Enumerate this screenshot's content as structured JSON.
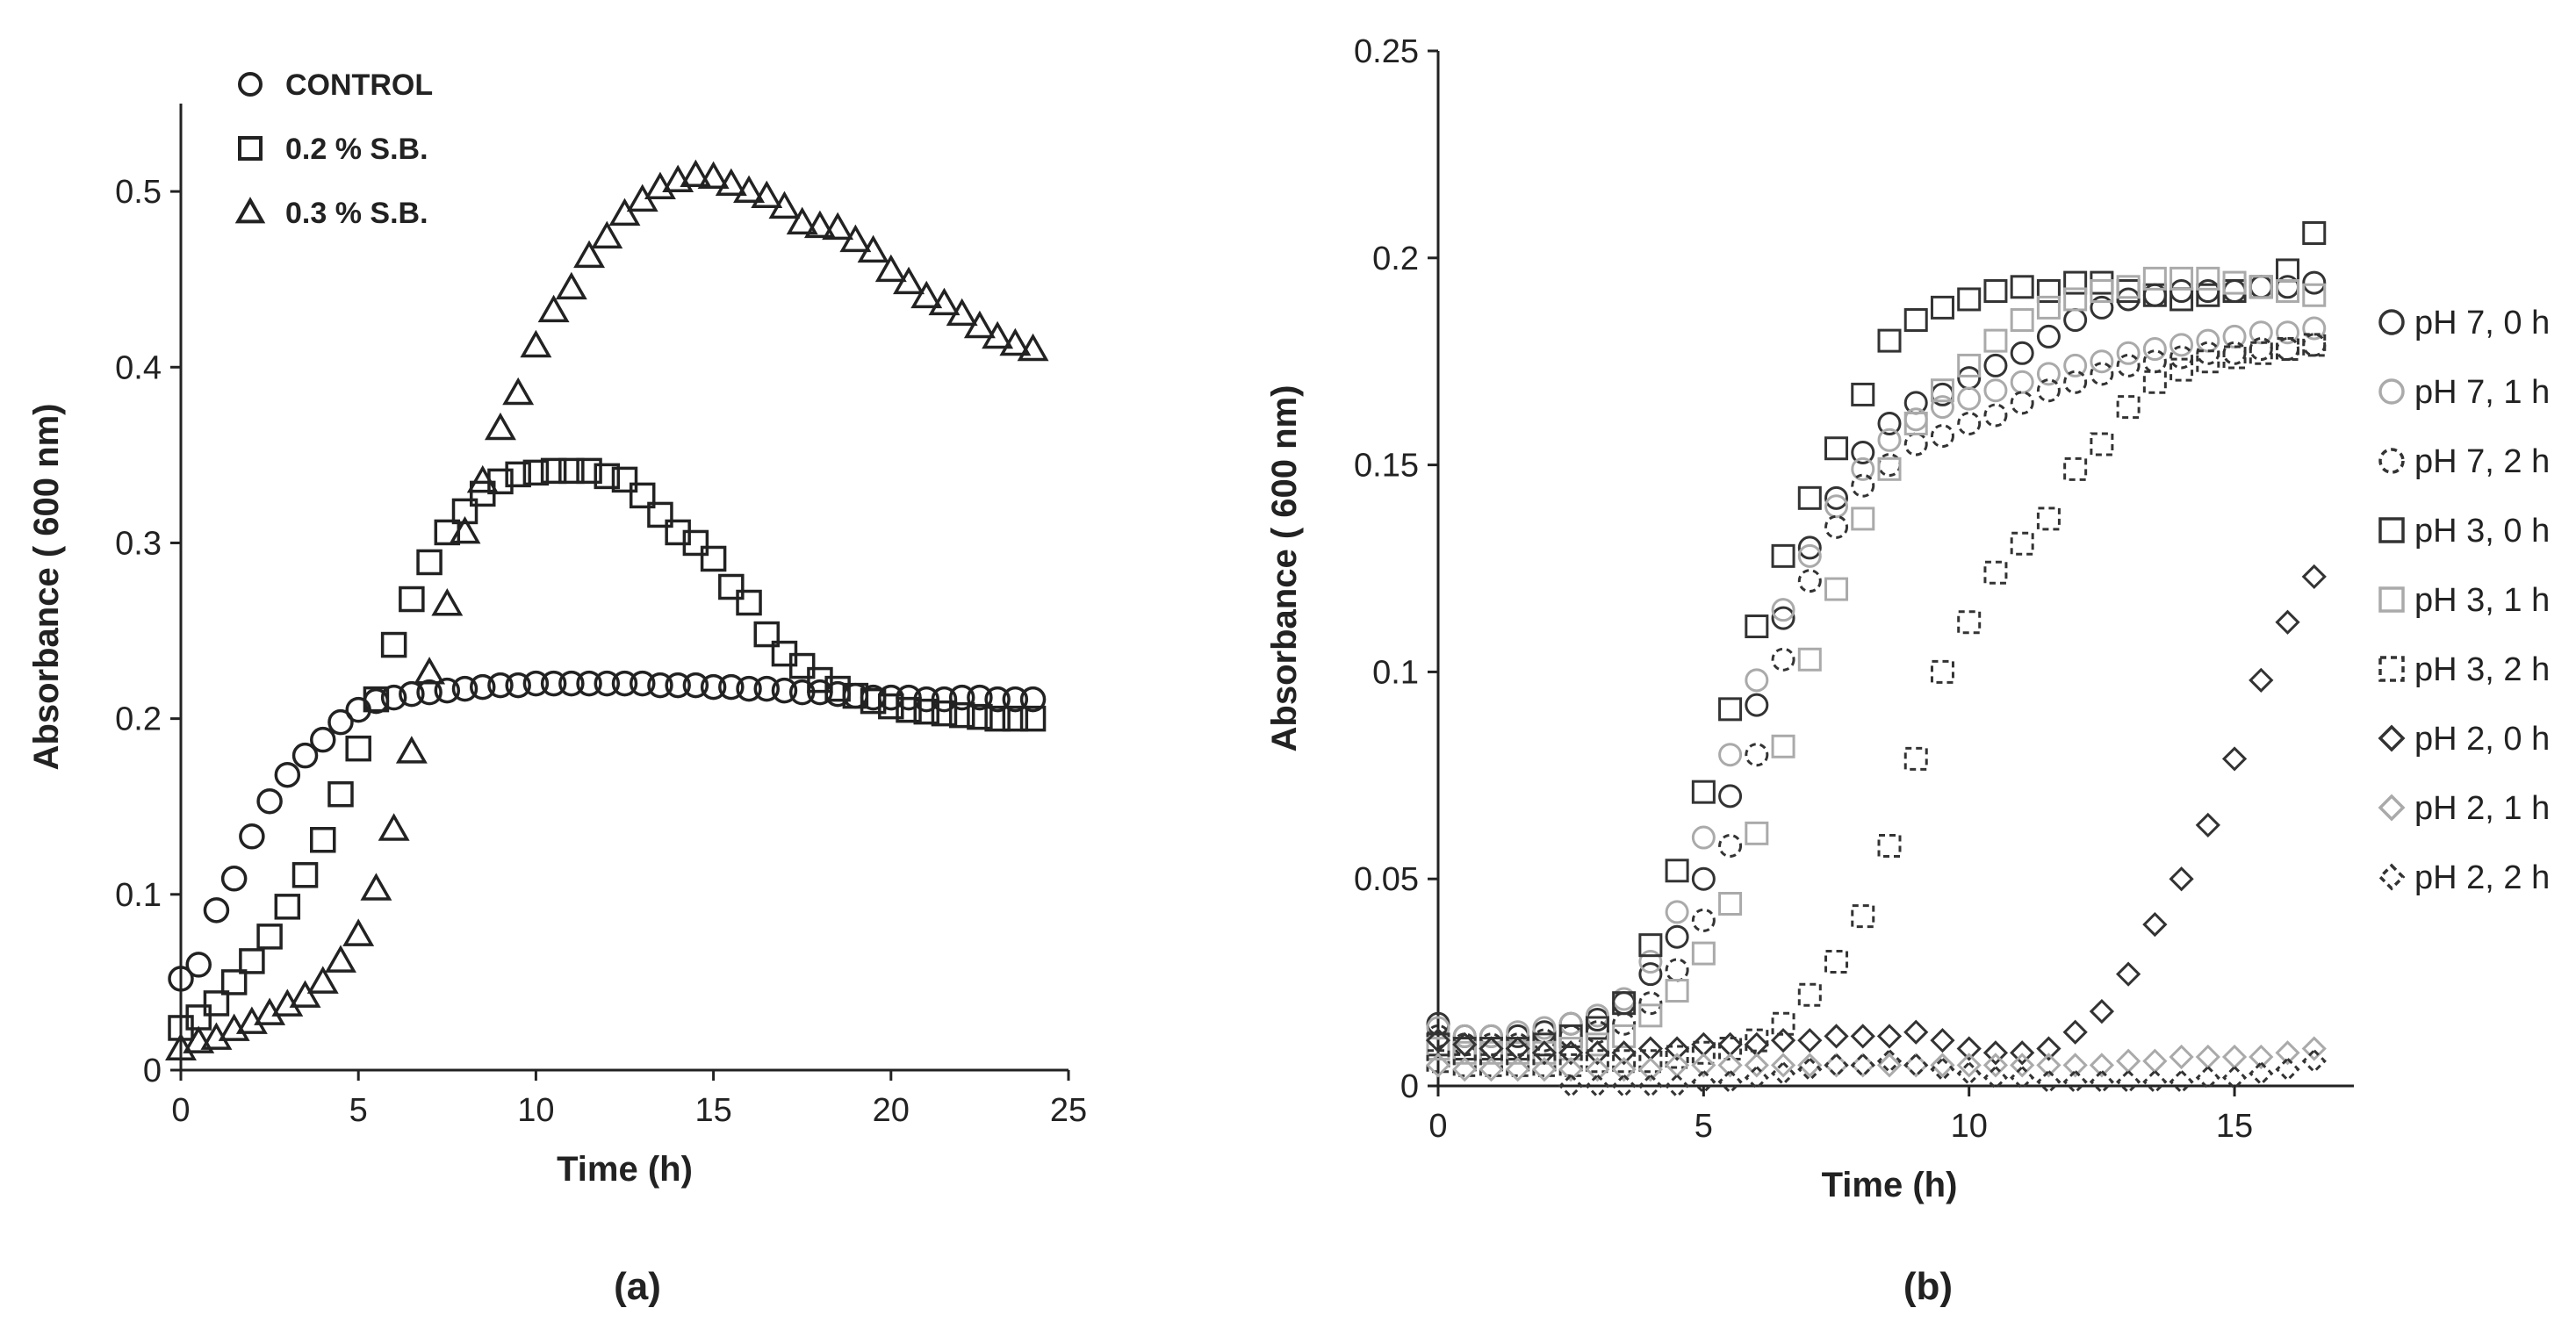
{
  "chart_data": [
    {
      "type": "scatter",
      "panel_label": "(a)",
      "xlabel": "Time (h)",
      "ylabel": "Absorbance ( 600 nm)",
      "xlim": [
        0,
        25
      ],
      "ylim": [
        0,
        0.55
      ],
      "xticks": [
        0,
        5,
        10,
        15,
        20,
        25
      ],
      "yticks": [
        0,
        0.1,
        0.2,
        0.3,
        0.4,
        0.5
      ],
      "xtick_labels": [
        "0",
        "5",
        "10",
        "15",
        "20",
        "25"
      ],
      "ytick_labels": [
        "0",
        "0.1",
        "0.2",
        "0.3",
        "0.4",
        "0.5"
      ],
      "legend_position": "top-left",
      "series": [
        {
          "name": "CONTROL",
          "marker": "circle",
          "color": "#222222",
          "x": [
            0,
            0.5,
            1,
            1.5,
            2,
            2.5,
            3,
            3.5,
            4,
            4.5,
            5,
            5.5,
            6,
            6.5,
            7,
            7.5,
            8,
            8.5,
            9,
            9.5,
            10,
            10.5,
            11,
            11.5,
            12,
            12.5,
            13,
            13.5,
            14,
            14.5,
            15,
            15.5,
            16,
            16.5,
            17,
            17.5,
            18,
            18.5,
            19,
            19.5,
            20,
            20.5,
            21,
            21.5,
            22,
            22.5,
            23,
            23.5,
            24
          ],
          "y": [
            0.052,
            0.06,
            0.091,
            0.109,
            0.133,
            0.153,
            0.168,
            0.179,
            0.188,
            0.198,
            0.205,
            0.21,
            0.212,
            0.214,
            0.215,
            0.216,
            0.217,
            0.218,
            0.219,
            0.219,
            0.22,
            0.22,
            0.22,
            0.22,
            0.22,
            0.22,
            0.22,
            0.219,
            0.219,
            0.219,
            0.218,
            0.218,
            0.217,
            0.217,
            0.216,
            0.215,
            0.215,
            0.214,
            0.213,
            0.212,
            0.212,
            0.212,
            0.211,
            0.211,
            0.212,
            0.212,
            0.211,
            0.211,
            0.211
          ]
        },
        {
          "name": "0.2 %  S.B.",
          "marker": "square",
          "color": "#222222",
          "x": [
            0,
            0.5,
            1,
            1.5,
            2,
            2.5,
            3,
            3.5,
            4,
            4.5,
            5,
            5.5,
            6,
            6.5,
            7,
            7.5,
            8,
            8.5,
            9,
            9.5,
            10,
            10.5,
            11,
            11.5,
            12,
            12.5,
            13,
            13.5,
            14,
            14.5,
            15,
            15.5,
            16,
            16.5,
            17,
            17.5,
            18,
            18.5,
            19,
            19.5,
            20,
            20.5,
            21,
            21.5,
            22,
            22.5,
            23,
            23.5,
            24
          ],
          "y": [
            0.024,
            0.03,
            0.038,
            0.05,
            0.062,
            0.076,
            0.093,
            0.111,
            0.131,
            0.157,
            0.183,
            0.211,
            0.242,
            0.268,
            0.289,
            0.306,
            0.318,
            0.328,
            0.335,
            0.339,
            0.34,
            0.341,
            0.341,
            0.341,
            0.338,
            0.336,
            0.327,
            0.316,
            0.306,
            0.3,
            0.291,
            0.275,
            0.266,
            0.248,
            0.237,
            0.23,
            0.222,
            0.217,
            0.213,
            0.21,
            0.207,
            0.205,
            0.204,
            0.203,
            0.202,
            0.201,
            0.2,
            0.2,
            0.2
          ]
        },
        {
          "name": "0.3 %  S.B.",
          "marker": "triangle",
          "color": "#222222",
          "x": [
            0,
            0.5,
            1,
            1.5,
            2,
            2.5,
            3,
            3.5,
            4,
            4.5,
            5,
            5.5,
            6,
            6.5,
            7,
            7.5,
            8,
            8.5,
            9,
            9.5,
            10,
            10.5,
            11,
            11.5,
            12,
            12.5,
            13,
            13.5,
            14,
            14.5,
            15,
            15.5,
            16,
            16.5,
            17,
            17.5,
            18,
            18.5,
            19,
            19.5,
            20,
            20.5,
            21,
            21.5,
            22,
            22.5,
            23,
            23.5,
            24
          ],
          "y": [
            0.012,
            0.016,
            0.018,
            0.023,
            0.027,
            0.032,
            0.037,
            0.042,
            0.05,
            0.062,
            0.077,
            0.103,
            0.137,
            0.181,
            0.226,
            0.265,
            0.306,
            0.335,
            0.365,
            0.385,
            0.412,
            0.432,
            0.445,
            0.463,
            0.474,
            0.487,
            0.495,
            0.502,
            0.506,
            0.509,
            0.508,
            0.504,
            0.5,
            0.497,
            0.491,
            0.482,
            0.48,
            0.479,
            0.472,
            0.466,
            0.455,
            0.448,
            0.44,
            0.436,
            0.43,
            0.423,
            0.417,
            0.413,
            0.41
          ]
        }
      ]
    },
    {
      "type": "scatter",
      "panel_label": "(b)",
      "xlabel": "Time (h)",
      "ylabel": "Absorbance ( 600 nm)",
      "xlim": [
        0,
        17
      ],
      "ylim": [
        0,
        0.25
      ],
      "xticks": [
        0,
        5,
        10,
        15
      ],
      "yticks": [
        0,
        0.05,
        0.1,
        0.15,
        0.2,
        0.25
      ],
      "xtick_labels": [
        "0",
        "5",
        "10",
        "15"
      ],
      "ytick_labels": [
        "0",
        "0.05",
        "0.1",
        "0.15",
        "0.2",
        "0.25"
      ],
      "legend_position": "right",
      "series": [
        {
          "name": "pH 7, 0 h",
          "marker": "circle",
          "style": "solid",
          "color": "#333333",
          "x": [
            0,
            0.5,
            1,
            1.5,
            2,
            2.5,
            3,
            3.5,
            4,
            4.5,
            5,
            5.5,
            6,
            6.5,
            7,
            7.5,
            8,
            8.5,
            9,
            9.5,
            10,
            10.5,
            11,
            11.5,
            12,
            12.5,
            13,
            13.5,
            14,
            14.5,
            15,
            15.5,
            16,
            16.5
          ],
          "y": [
            0.015,
            0.012,
            0.012,
            0.012,
            0.013,
            0.015,
            0.016,
            0.02,
            0.027,
            0.036,
            0.05,
            0.07,
            0.092,
            0.113,
            0.13,
            0.142,
            0.153,
            0.16,
            0.165,
            0.167,
            0.171,
            0.174,
            0.177,
            0.181,
            0.185,
            0.188,
            0.19,
            0.191,
            0.192,
            0.192,
            0.192,
            0.193,
            0.193,
            0.194
          ]
        },
        {
          "name": "pH 7, 1 h",
          "marker": "circle",
          "style": "light",
          "color": "#aaaaaa",
          "x": [
            0,
            0.5,
            1,
            1.5,
            2,
            2.5,
            3,
            3.5,
            4,
            4.5,
            5,
            5.5,
            6,
            6.5,
            7,
            7.5,
            8,
            8.5,
            9,
            9.5,
            10,
            10.5,
            11,
            11.5,
            12,
            12.5,
            13,
            13.5,
            14,
            14.5,
            15,
            15.5,
            16,
            16.5
          ],
          "y": [
            0.014,
            0.012,
            0.012,
            0.013,
            0.014,
            0.015,
            0.017,
            0.021,
            0.03,
            0.042,
            0.06,
            0.08,
            0.098,
            0.115,
            0.128,
            0.14,
            0.149,
            0.156,
            0.161,
            0.164,
            0.166,
            0.168,
            0.17,
            0.172,
            0.174,
            0.175,
            0.177,
            0.178,
            0.179,
            0.18,
            0.181,
            0.182,
            0.182,
            0.183
          ]
        },
        {
          "name": "pH 7, 2 h",
          "marker": "circle",
          "style": "dashed",
          "color": "#333333",
          "x": [
            0,
            0.5,
            1,
            1.5,
            2,
            2.5,
            3,
            3.5,
            4,
            4.5,
            5,
            5.5,
            6,
            6.5,
            7,
            7.5,
            8,
            8.5,
            9,
            9.5,
            10,
            10.5,
            11,
            11.5,
            12,
            12.5,
            13,
            13.5,
            14,
            14.5,
            15,
            15.5,
            16,
            16.5
          ],
          "y": [
            0.012,
            0.01,
            0.01,
            0.01,
            0.011,
            0.012,
            0.013,
            0.015,
            0.02,
            0.028,
            0.04,
            0.058,
            0.08,
            0.103,
            0.122,
            0.135,
            0.145,
            0.15,
            0.155,
            0.157,
            0.16,
            0.162,
            0.165,
            0.168,
            0.17,
            0.172,
            0.174,
            0.175,
            0.176,
            0.177,
            0.177,
            0.178,
            0.178,
            0.179
          ]
        },
        {
          "name": "pH 3, 0 h",
          "marker": "square",
          "style": "solid",
          "color": "#333333",
          "x": [
            0,
            0.5,
            1,
            1.5,
            2,
            2.5,
            3,
            3.5,
            4,
            4.5,
            5,
            5.5,
            6,
            6.5,
            7,
            7.5,
            8,
            8.5,
            9,
            9.5,
            10,
            10.5,
            11,
            11.5,
            12,
            12.5,
            13,
            13.5,
            14,
            14.5,
            15,
            15.5,
            16,
            16.5
          ],
          "y": [
            0.01,
            0.009,
            0.009,
            0.009,
            0.01,
            0.012,
            0.014,
            0.02,
            0.034,
            0.052,
            0.071,
            0.091,
            0.111,
            0.128,
            0.142,
            0.154,
            0.167,
            0.18,
            0.185,
            0.188,
            0.19,
            0.192,
            0.193,
            0.192,
            0.194,
            0.194,
            0.192,
            0.191,
            0.19,
            0.191,
            0.192,
            0.193,
            0.197,
            0.206
          ]
        },
        {
          "name": "pH 3, 1 h",
          "marker": "square",
          "style": "light",
          "color": "#aaaaaa",
          "x": [
            0,
            0.5,
            1,
            1.5,
            2,
            2.5,
            3,
            3.5,
            4,
            4.5,
            5,
            5.5,
            6,
            6.5,
            7,
            7.5,
            8,
            8.5,
            9,
            9.5,
            10,
            10.5,
            11,
            11.5,
            12,
            12.5,
            13,
            13.5,
            14,
            14.5,
            15,
            15.5,
            16,
            16.5
          ],
          "y": [
            0.009,
            0.008,
            0.008,
            0.008,
            0.008,
            0.009,
            0.01,
            0.012,
            0.017,
            0.023,
            0.032,
            0.044,
            0.061,
            0.082,
            0.103,
            0.12,
            0.137,
            0.149,
            0.16,
            0.168,
            0.174,
            0.18,
            0.185,
            0.188,
            0.19,
            0.192,
            0.193,
            0.195,
            0.195,
            0.195,
            0.194,
            0.193,
            0.192,
            0.191
          ]
        },
        {
          "name": "pH 3, 2 h",
          "marker": "square",
          "style": "dashed",
          "color": "#333333",
          "x": [
            0,
            0.5,
            1,
            1.5,
            2,
            2.5,
            3,
            3.5,
            4,
            4.5,
            5,
            5.5,
            6,
            6.5,
            7,
            7.5,
            8,
            8.5,
            9,
            9.5,
            10,
            10.5,
            11,
            11.5,
            12,
            12.5,
            13,
            13.5,
            14,
            14.5,
            15,
            15.5,
            16,
            16.5
          ],
          "y": [
            0.006,
            0.005,
            0.005,
            0.005,
            0.005,
            0.005,
            0.006,
            0.006,
            0.006,
            0.007,
            0.008,
            0.009,
            0.011,
            0.015,
            0.022,
            0.03,
            0.041,
            0.058,
            0.079,
            0.1,
            0.112,
            0.124,
            0.131,
            0.137,
            0.149,
            0.155,
            0.164,
            0.17,
            0.173,
            0.175,
            0.176,
            0.177,
            0.178,
            0.179
          ]
        },
        {
          "name": "pH 2, 0 h",
          "marker": "diamond",
          "style": "solid",
          "color": "#333333",
          "x": [
            0,
            0.5,
            1,
            1.5,
            2,
            2.5,
            3,
            3.5,
            4,
            4.5,
            5,
            5.5,
            6,
            6.5,
            7,
            7.5,
            8,
            8.5,
            9,
            9.5,
            10,
            10.5,
            11,
            11.5,
            12,
            12.5,
            13,
            13.5,
            14,
            14.5,
            15,
            15.5,
            16,
            16.5
          ],
          "y": [
            0.011,
            0.01,
            0.009,
            0.009,
            0.008,
            0.008,
            0.008,
            0.008,
            0.009,
            0.009,
            0.01,
            0.01,
            0.01,
            0.011,
            0.011,
            0.012,
            0.012,
            0.012,
            0.013,
            0.011,
            0.009,
            0.008,
            0.008,
            0.009,
            0.013,
            0.018,
            0.027,
            0.039,
            0.05,
            0.063,
            0.079,
            0.098,
            0.112,
            0.123
          ]
        },
        {
          "name": "pH 2, 1 h",
          "marker": "diamond",
          "style": "light",
          "color": "#aaaaaa",
          "x": [
            0,
            0.5,
            1,
            1.5,
            2,
            2.5,
            3,
            3.5,
            4,
            4.5,
            5,
            5.5,
            6,
            6.5,
            7,
            7.5,
            8,
            8.5,
            9,
            9.5,
            10,
            10.5,
            11,
            11.5,
            12,
            12.5,
            13,
            13.5,
            14,
            14.5,
            15,
            15.5,
            16,
            16.5
          ],
          "y": [
            0.005,
            0.004,
            0.004,
            0.004,
            0.004,
            0.004,
            0.004,
            0.004,
            0.004,
            0.005,
            0.005,
            0.005,
            0.005,
            0.005,
            0.005,
            0.005,
            0.005,
            0.005,
            0.005,
            0.005,
            0.005,
            0.005,
            0.005,
            0.005,
            0.005,
            0.005,
            0.006,
            0.006,
            0.007,
            0.007,
            0.007,
            0.007,
            0.008,
            0.009
          ]
        },
        {
          "name": "pH 2, 2 h",
          "marker": "diamond",
          "style": "dashed",
          "color": "#333333",
          "x": [
            2.5,
            3,
            3.5,
            4,
            4.5,
            5,
            5.5,
            6,
            6.5,
            7,
            7.5,
            8,
            8.5,
            9,
            9.5,
            10,
            10.5,
            11,
            11.5,
            12,
            12.5,
            13,
            13.5,
            14,
            14.5,
            15,
            15.5,
            16,
            16.5
          ],
          "y": [
            0,
            0,
            0,
            0,
            0,
            0.001,
            0.001,
            0.002,
            0.003,
            0.004,
            0.005,
            0.005,
            0.006,
            0.005,
            0.004,
            0.003,
            0.002,
            0.002,
            0.001,
            0.001,
            0.001,
            0.001,
            0.001,
            0.001,
            0.002,
            0.002,
            0.003,
            0.004,
            0.006
          ]
        }
      ]
    }
  ]
}
